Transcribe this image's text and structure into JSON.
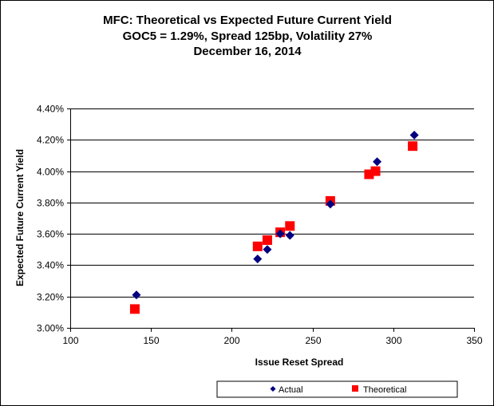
{
  "chart_data": {
    "type": "scatter",
    "title_lines": [
      "MFC: Theoretical vs Expected Future Current Yield",
      "GOC5 = 1.29%, Spread 125bp, Volatility 27%",
      "December 16, 2014"
    ],
    "xlabel": "Issue Reset Spread",
    "ylabel": "Expected Future Current Yield",
    "xlim": [
      100,
      350
    ],
    "ylim": [
      3.0,
      4.4
    ],
    "x_ticks": [
      100,
      150,
      200,
      250,
      300,
      350
    ],
    "x_tick_labels": [
      "100",
      "150",
      "200",
      "250",
      "300",
      "350"
    ],
    "y_ticks": [
      3.0,
      3.2,
      3.4,
      3.6,
      3.8,
      4.0,
      4.2,
      4.4
    ],
    "y_tick_labels": [
      "3.00%",
      "3.20%",
      "3.40%",
      "3.60%",
      "3.80%",
      "4.00%",
      "4.20%",
      "4.40%"
    ],
    "grid": "horizontal",
    "legend_position": "bottom",
    "series": [
      {
        "name": "Actual",
        "marker": "diamond",
        "color": "#000080",
        "points": [
          {
            "x": 141,
            "y": 3.21
          },
          {
            "x": 216,
            "y": 3.44
          },
          {
            "x": 222,
            "y": 3.5
          },
          {
            "x": 230,
            "y": 3.6
          },
          {
            "x": 236,
            "y": 3.59
          },
          {
            "x": 261,
            "y": 3.79
          },
          {
            "x": 290,
            "y": 4.06
          },
          {
            "x": 313,
            "y": 4.23
          }
        ]
      },
      {
        "name": "Theoretical",
        "marker": "square",
        "color": "#ff0000",
        "points": [
          {
            "x": 140,
            "y": 3.12
          },
          {
            "x": 216,
            "y": 3.52
          },
          {
            "x": 222,
            "y": 3.56
          },
          {
            "x": 230,
            "y": 3.61
          },
          {
            "x": 236,
            "y": 3.65
          },
          {
            "x": 261,
            "y": 3.81
          },
          {
            "x": 285,
            "y": 3.98
          },
          {
            "x": 289,
            "y": 4.0
          },
          {
            "x": 312,
            "y": 4.16
          }
        ]
      }
    ]
  }
}
